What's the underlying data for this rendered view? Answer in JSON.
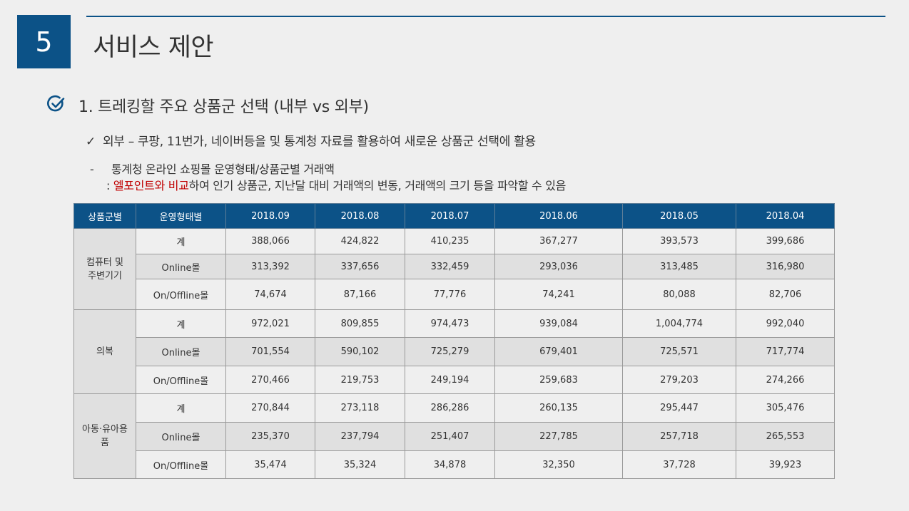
{
  "header": {
    "number": "5",
    "title": "서비스 제안"
  },
  "section": {
    "heading": "1. 트레킹할 주요 상품군 선택 (내부 vs 외부)"
  },
  "bullets": {
    "check_mark": "✓",
    "b1": "외부 – 쿠팡, 11번가, 네이버등을 및 통계청 자료를 활용하여 새로운 상품군 선택에 활용",
    "dash": "-",
    "b2": "통계청 온라인 쇼핑몰 운영형태/상품군별 거래액",
    "b3_prefix": ": ",
    "b3_highlight": "엘포인트와 비교",
    "b3_rest": "하여 인기 상품군, 지난달 대비 거래액의 변동, 거래액의 크기 등을 파악할 수 있음"
  },
  "table": {
    "headers": [
      "상품군별",
      "운영형태별",
      "2018.09",
      "2018.08",
      "2018.07",
      "2018.06",
      "2018.05",
      "2018.04"
    ],
    "groups": [
      {
        "name": "컴퓨터 및\n주변기기",
        "rows": [
          {
            "type": "계",
            "values": [
              "388,066",
              "424,822",
              "410,235",
              "367,277",
              "393,573",
              "399,686"
            ]
          },
          {
            "type": "Online몰",
            "values": [
              "313,392",
              "337,656",
              "332,459",
              "293,036",
              "313,485",
              "316,980"
            ]
          },
          {
            "type": "On/Offline몰",
            "values": [
              "74,674",
              "87,166",
              "77,776",
              "74,241",
              "80,088",
              "82,706"
            ]
          }
        ]
      },
      {
        "name": "의복",
        "rows": [
          {
            "type": "계",
            "values": [
              "972,021",
              "809,855",
              "974,473",
              "939,084",
              "1,004,774",
              "992,040"
            ]
          },
          {
            "type": "Online몰",
            "values": [
              "701,554",
              "590,102",
              "725,279",
              "679,401",
              "725,571",
              "717,774"
            ]
          },
          {
            "type": "On/Offline몰",
            "values": [
              "270,466",
              "219,753",
              "249,194",
              "259,683",
              "279,203",
              "274,266"
            ]
          }
        ]
      },
      {
        "name": "아동·유아용\n품",
        "rows": [
          {
            "type": "계",
            "values": [
              "270,844",
              "273,118",
              "286,286",
              "260,135",
              "295,447",
              "305,476"
            ]
          },
          {
            "type": "Online몰",
            "values": [
              "235,370",
              "237,794",
              "251,407",
              "227,785",
              "257,718",
              "265,553"
            ]
          },
          {
            "type": "On/Offline몰",
            "values": [
              "35,474",
              "35,324",
              "34,878",
              "32,350",
              "37,728",
              "39,923"
            ]
          }
        ]
      }
    ]
  },
  "colors": {
    "accent": "#0c5287",
    "highlight": "#c00000"
  }
}
